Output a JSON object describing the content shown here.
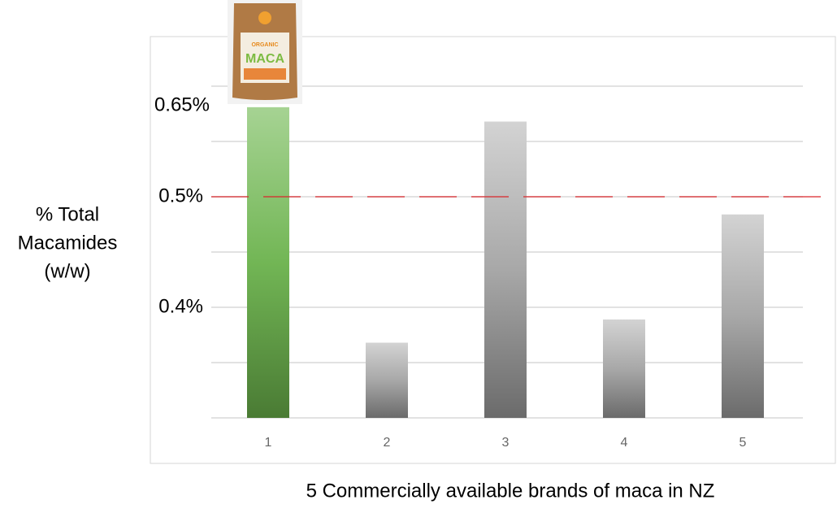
{
  "chart_data": {
    "type": "bar",
    "y_label": [
      "% Total",
      "Macamides",
      "(w/w)"
    ],
    "x_label": "5 Commercially available brands of maca in NZ",
    "annotation": "0.65%",
    "product_text": [
      "ORGANIC",
      "MACA"
    ],
    "categories": [
      "1",
      "2",
      "3",
      "4",
      "5"
    ],
    "values": [
      0.581,
      0.368,
      0.568,
      0.389,
      0.484
    ],
    "colors": [
      "green",
      "gray",
      "gray",
      "gray",
      "gray"
    ],
    "ylim": [
      0.3,
      0.62
    ],
    "yticks": [
      {
        "value": 0.3,
        "label": null
      },
      {
        "value": 0.35,
        "label": null
      },
      {
        "value": 0.4,
        "label": "0.4%"
      },
      {
        "value": 0.45,
        "label": null
      },
      {
        "value": 0.5,
        "label": "0.5%"
      },
      {
        "value": 0.55,
        "label": null
      },
      {
        "value": 0.6,
        "label": null
      }
    ],
    "grid": true,
    "reference_line": {
      "value": 0.5,
      "color": "#d9262b"
    }
  }
}
